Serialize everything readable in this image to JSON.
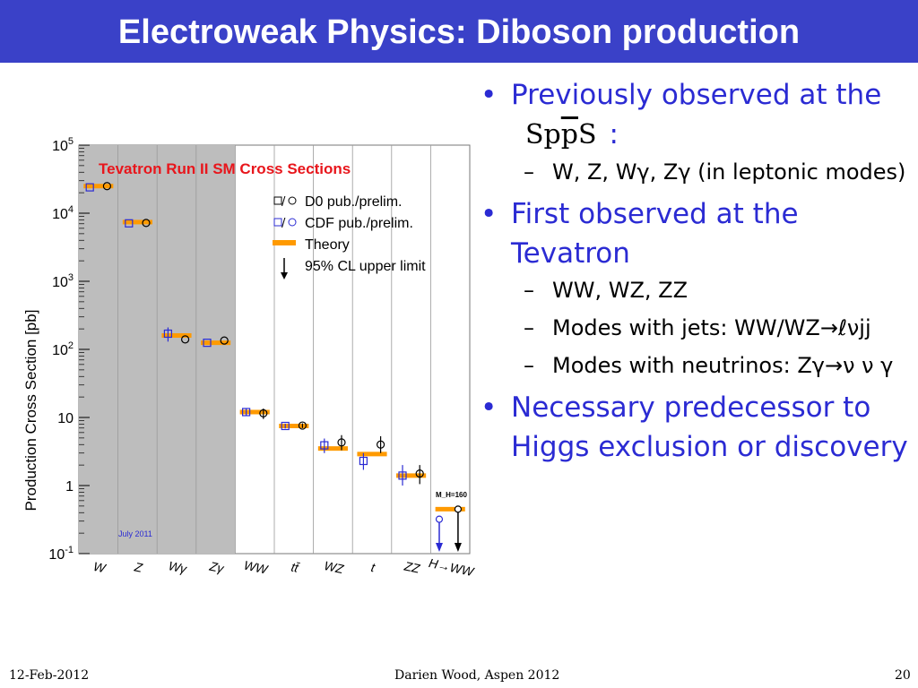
{
  "slide": {
    "title": "Electroweak Physics: Diboson production",
    "footer_date": "12-Feb-2012",
    "footer_author": "Darien Wood, Aspen 2012",
    "footer_page": "20"
  },
  "bullets": {
    "b1_prefix": "Previously observed at the",
    "b1_spps_a": "Sp",
    "b1_spps_b": "p",
    "b1_spps_c": "S",
    "b1_suffix": ":",
    "b1_sub1": "W, Z, Wγ, Zγ (in leptonic modes)",
    "b2": "First observed at the Tevatron",
    "b2_sub1": "WW, WZ, ZZ",
    "b2_sub2": "Modes with jets: WW/WZ→ℓνjj",
    "b2_sub3": "Modes with neutrinos: Zγ→ν ν γ",
    "b3": "Necessary predecessor to Higgs exclusion or discovery"
  },
  "colors": {
    "title_bar": "#3a41c8",
    "bullet_blue": "#2b2bd3",
    "theory_orange": "#ff9a00",
    "cdf_blue": "#2b2bd3",
    "chart_title_red": "#e8161c",
    "shaded_region": "#bdbdbd"
  },
  "chart_data": {
    "type": "scatter",
    "title": "Tevatron Run II SM Cross Sections",
    "ylabel": "Production Cross Section [pb]",
    "yscale": "log",
    "ylim": [
      0.1,
      100000
    ],
    "yticks": [
      "10^-1",
      "1",
      "10",
      "10^2",
      "10^3",
      "10^4",
      "10^5"
    ],
    "categories": [
      "W",
      "Z",
      "Wγ",
      "Zγ",
      "WW",
      "tt̄",
      "WZ",
      "t",
      "ZZ",
      "H→WW"
    ],
    "higgs_label": "M_H=160",
    "date_label": "July 2011",
    "legend": {
      "d0": "D0 pub./prelim.",
      "cdf": "CDF pub./prelim.",
      "theory": "Theory",
      "limit": "95% CL upper limit"
    },
    "series": [
      {
        "name": "D0 pub./prelim.",
        "values": [
          25000,
          7200,
          140,
          135,
          11.5,
          7.6,
          4.3,
          4.0,
          1.5,
          0.45
        ],
        "err_lo": [
          0,
          0,
          0,
          0,
          2.0,
          0.6,
          1.0,
          1.0,
          0.45,
          0
        ],
        "err_hi": [
          0,
          0,
          0,
          0,
          2.0,
          0.6,
          1.2,
          1.3,
          0.5,
          0
        ]
      },
      {
        "name": "CDF pub./prelim.",
        "values": [
          24000,
          7100,
          170,
          125,
          12.0,
          7.5,
          3.9,
          2.3,
          1.4,
          0.32
        ],
        "err_lo": [
          0,
          0,
          40,
          0,
          1.5,
          0.6,
          0.9,
          0.6,
          0.4,
          0
        ],
        "err_hi": [
          0,
          0,
          40,
          0,
          1.5,
          0.6,
          1.0,
          0.7,
          0.6,
          0
        ]
      },
      {
        "name": "Theory",
        "values": [
          25000,
          7400,
          160,
          125,
          12.0,
          7.5,
          3.5,
          2.9,
          1.4,
          0.45
        ]
      }
    ],
    "upper_limits": [
      {
        "category": "H→WW",
        "d0": 0.45,
        "cdf": 0.32
      }
    ],
    "shaded_categories": [
      "W",
      "Z",
      "Wγ",
      "Zγ"
    ]
  }
}
